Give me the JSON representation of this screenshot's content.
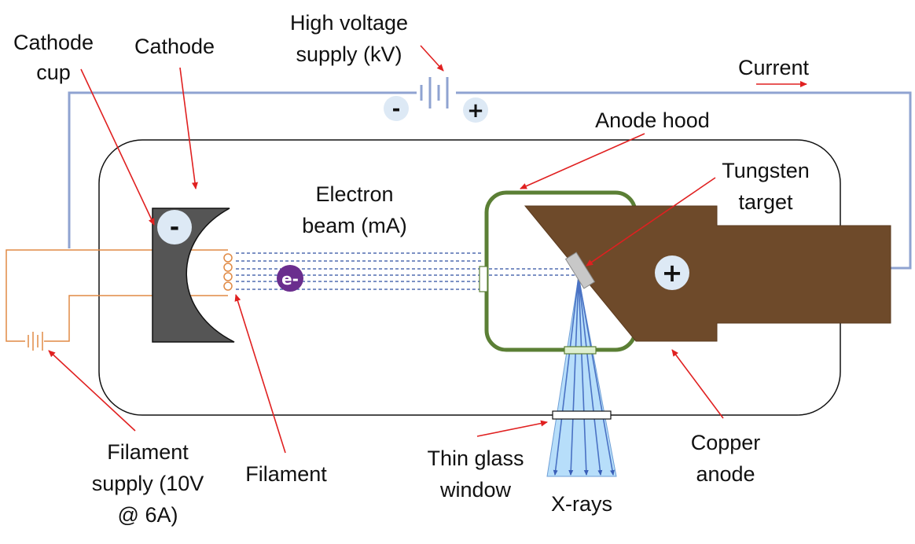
{
  "labels": {
    "cathode_cup": [
      "Cathode",
      "cup"
    ],
    "cathode": "Cathode",
    "high_voltage": [
      "High voltage",
      "supply (kV)"
    ],
    "current": "Current",
    "anode_hood": "Anode hood",
    "tungsten_target": [
      "Tungsten",
      "target"
    ],
    "electron_beam": [
      "Electron",
      "beam (mA)"
    ],
    "filament_supply": [
      "Filament",
      "supply (10V",
      "@ 6A)"
    ],
    "filament": "Filament",
    "thin_glass_window": [
      "Thin glass",
      "window"
    ],
    "x_rays": "X-rays",
    "copper_anode": [
      "Copper",
      "anode"
    ]
  },
  "symbols": {
    "hv_negative": "-",
    "hv_positive": "+",
    "cathode_charge": "-",
    "anode_charge": "+",
    "electron": "e-"
  },
  "colors": {
    "circuit_wire": "#8fa3d1",
    "filament_wire": "#e08a45",
    "pointer_arrow": "#e02020",
    "cathode_body": "#555555",
    "anode_hood": "#5b7f35",
    "copper_anode": "#6e4a2a",
    "tungsten": "#c8c8c8",
    "electron": "#6a2e8e",
    "xray_fill": "#b7defa",
    "xray_lines": "#4a72c4",
    "beam_lines": "#2e4fa0",
    "charge_circle": "#dde9f5"
  }
}
